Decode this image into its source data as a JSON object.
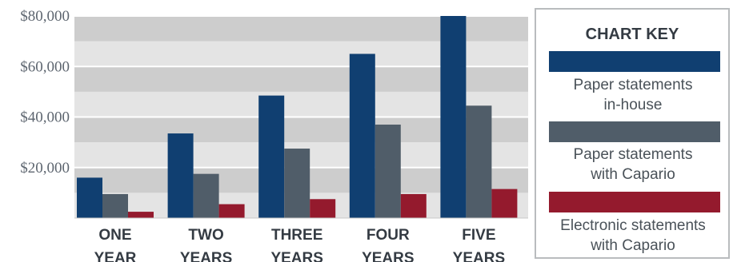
{
  "chart_data": {
    "type": "bar",
    "categories": [
      [
        "ONE",
        "YEAR"
      ],
      [
        "TWO",
        "YEARS"
      ],
      [
        "THREE",
        "YEARS"
      ],
      [
        "FOUR",
        "YEARS"
      ],
      [
        "FIVE",
        "YEARS"
      ]
    ],
    "series": [
      {
        "name": "Paper statements in-house",
        "color": "#103f71",
        "values": [
          16000,
          33500,
          48500,
          65000,
          80000
        ]
      },
      {
        "name": "Paper statements with Capario",
        "color": "#505d69",
        "values": [
          9500,
          17500,
          27500,
          37000,
          44500
        ]
      },
      {
        "name": "Electronic statements with Capario",
        "color": "#941a2d",
        "values": [
          2500,
          5500,
          7500,
          9500,
          11500
        ]
      }
    ],
    "ylim": [
      0,
      80000
    ],
    "yticks": [
      "$20,000",
      "$40,000",
      "$60,000",
      "$80,000"
    ],
    "ytick_values": [
      20000,
      40000,
      60000,
      80000
    ],
    "grid": true,
    "legend_position": "right"
  },
  "legend": {
    "title": "CHART KEY",
    "items": [
      {
        "label": "Paper statements\nin-house",
        "color": "#103f71"
      },
      {
        "label": "Paper statements\nwith Capario",
        "color": "#505d69"
      },
      {
        "label": "Electronic statements\nwith Capario",
        "color": "#941a2d"
      }
    ]
  }
}
